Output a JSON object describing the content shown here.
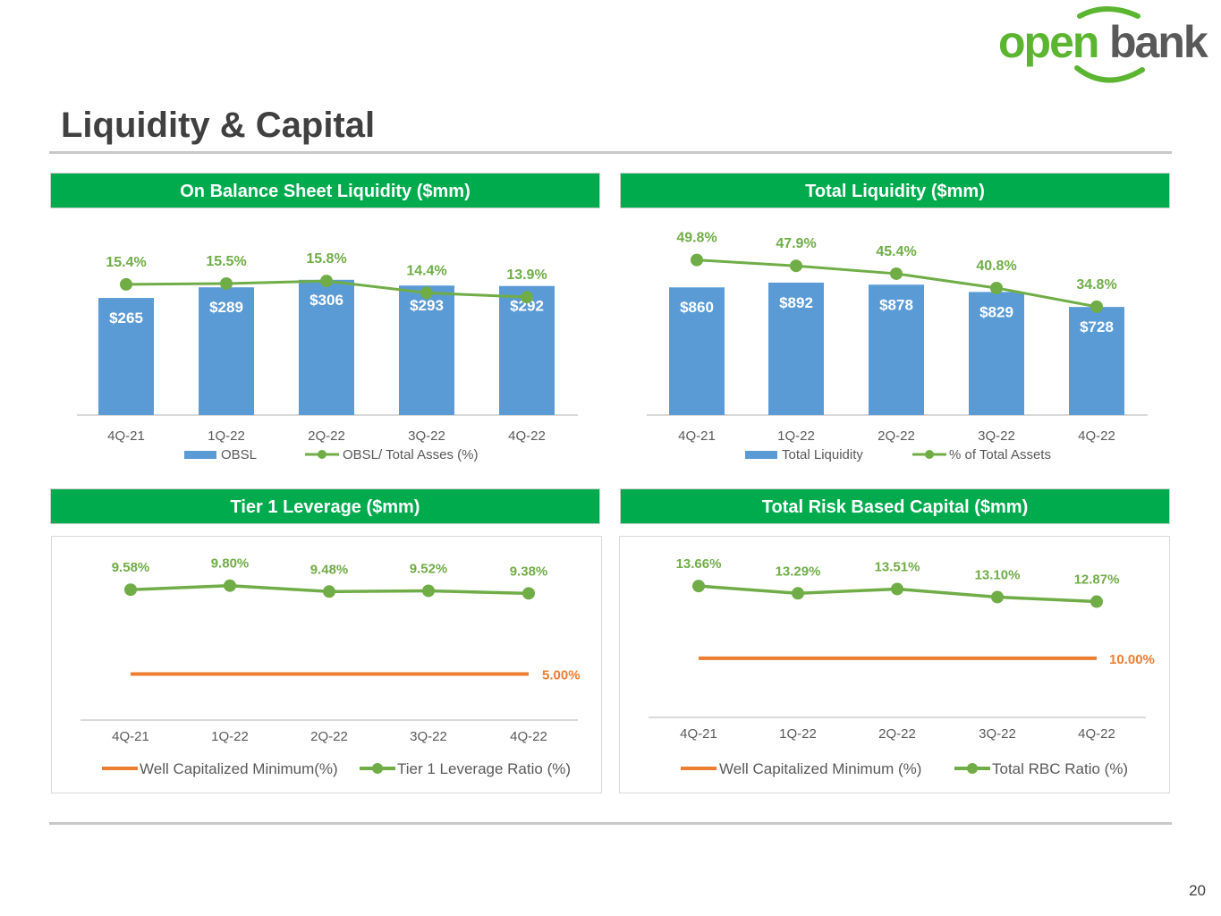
{
  "brand": {
    "logo_text_a": "open",
    "logo_text_b": "bank",
    "green": "#00ab4e",
    "logo_green": "#5cb531",
    "logo_gray": "#595959"
  },
  "page": {
    "title": "Liquidity & Capital",
    "number": "20"
  },
  "colors": {
    "bar": "#5b9bd5",
    "line": "#70ad47",
    "minimum": "#ed7d31",
    "axis": "#d9d9d9",
    "bar_label": "#ffffff",
    "tick": "#595959"
  },
  "chart_data": [
    {
      "id": "obsl",
      "type": "bar",
      "title": "On Balance Sheet Liquidity ($mm)",
      "categories": [
        "4Q-21",
        "1Q-22",
        "2Q-22",
        "3Q-22",
        "4Q-22"
      ],
      "series": [
        {
          "name": "OBSL",
          "kind": "bar",
          "values": [
            265,
            289,
            306,
            293,
            292
          ],
          "labels": [
            "$265",
            "$289",
            "$306",
            "$293",
            "$292"
          ]
        },
        {
          "name": "OBSL/ Total Asses (%)",
          "kind": "line",
          "values": [
            15.4,
            15.5,
            15.8,
            14.4,
            13.9
          ],
          "labels": [
            "15.4%",
            "15.5%",
            "15.8%",
            "14.4%",
            "13.9%"
          ]
        }
      ],
      "bar_ylim": [
        0,
        340
      ],
      "line_ylim": [
        0,
        17.5
      ]
    },
    {
      "id": "total-liquidity",
      "type": "bar",
      "title": "Total Liquidity ($mm)",
      "categories": [
        "4Q-21",
        "1Q-22",
        "2Q-22",
        "3Q-22",
        "4Q-22"
      ],
      "series": [
        {
          "name": "Total Liquidity",
          "kind": "bar",
          "values": [
            860,
            892,
            878,
            829,
            728
          ],
          "labels": [
            "$860",
            "$892",
            "$878",
            "$829",
            "$728"
          ]
        },
        {
          "name": "% of Total Assets",
          "kind": "line",
          "values": [
            49.8,
            47.9,
            45.4,
            40.8,
            34.8
          ],
          "labels": [
            "49.8%",
            "47.9%",
            "45.4%",
            "40.8%",
            "34.8%"
          ]
        }
      ],
      "bar_ylim": [
        0,
        1000
      ],
      "line_ylim": [
        0,
        54
      ]
    },
    {
      "id": "tier1",
      "type": "line",
      "title": "Tier 1 Leverage ($mm)",
      "categories": [
        "4Q-21",
        "1Q-22",
        "2Q-22",
        "3Q-22",
        "4Q-22"
      ],
      "series": [
        {
          "name": "Well Capitalized Minimum(%)",
          "kind": "minimum",
          "values": [
            5.0,
            5.0,
            5.0,
            5.0,
            5.0
          ],
          "labels": [
            "5.00%"
          ]
        },
        {
          "name": "Tier 1 Leverage Ratio (%)",
          "kind": "line",
          "values": [
            9.58,
            9.8,
            9.48,
            9.52,
            9.38
          ],
          "labels": [
            "9.58%",
            "9.80%",
            "9.48%",
            "9.52%",
            "9.38%"
          ]
        }
      ],
      "ylim": [
        2.5,
        11.0
      ]
    },
    {
      "id": "rbc",
      "type": "line",
      "title": "Total Risk Based Capital ($mm)",
      "categories": [
        "4Q-21",
        "1Q-22",
        "2Q-22",
        "3Q-22",
        "4Q-22"
      ],
      "series": [
        {
          "name": "Well Capitalized Minimum (%)",
          "kind": "minimum",
          "values": [
            10.0,
            10.0,
            10.0,
            10.0,
            10.0
          ],
          "labels": [
            "10.00%"
          ]
        },
        {
          "name": "Total RBC Ratio (%)",
          "kind": "line",
          "values": [
            13.66,
            13.29,
            13.51,
            13.1,
            12.87
          ],
          "labels": [
            "13.66%",
            "13.29%",
            "13.51%",
            "13.10%",
            "12.87%"
          ]
        }
      ],
      "ylim": [
        7.0,
        14.8
      ]
    }
  ]
}
